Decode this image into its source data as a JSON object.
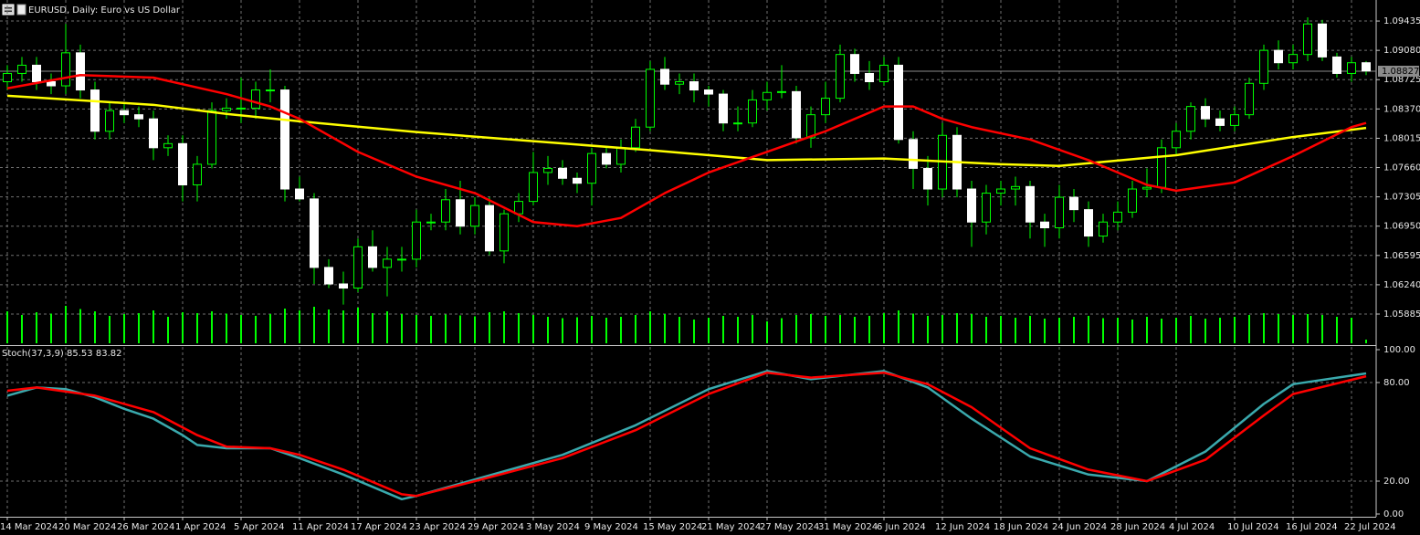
{
  "chart_data": {
    "type": "candlestick",
    "title": "EURUSD, Daily:  Euro vs US Dollar",
    "ylim": [
      1.0552,
      1.0969
    ],
    "yticks": [
      1.09435,
      {
        "value": 1.0908,
        "label": "1.09080"
      },
      1.08725,
      {
        "value": 1.0837,
        "label": "1.08370"
      },
      1.08015,
      {
        "value": 1.0766,
        "label": "1.07660"
      },
      1.07305,
      {
        "value": 1.0695,
        "label": "1.06950"
      },
      1.06595,
      {
        "value": 1.0624,
        "label": "1.06240"
      },
      1.05885
    ],
    "xticks": [
      {
        "value": 0,
        "label": "14 Mar 2024"
      },
      {
        "value": 4,
        "label": "20 Mar 2024"
      },
      {
        "value": 8,
        "label": "26 Mar 2024"
      },
      {
        "value": 12,
        "label": "1 Apr 2024"
      },
      {
        "value": 16,
        "label": "5 Apr 2024"
      },
      {
        "value": 20,
        "label": "11 Apr 2024"
      },
      {
        "value": 24,
        "label": "17 Apr 2024"
      },
      {
        "value": 28,
        "label": "23 Apr 2024"
      },
      {
        "value": 32,
        "label": "29 Apr 2024"
      },
      {
        "value": 36,
        "label": "3 May 2024"
      },
      {
        "value": 40,
        "label": "9 May 2024"
      },
      {
        "value": 44,
        "label": "15 May 2024"
      },
      {
        "value": 48,
        "label": "21 May 2024"
      },
      {
        "value": 52,
        "label": "27 May 2024"
      },
      {
        "value": 56,
        "label": "31 May 2024"
      },
      {
        "value": 60,
        "label": "6 Jun 2024"
      },
      {
        "value": 64,
        "label": "12 Jun 2024"
      },
      {
        "value": 68,
        "label": "18 Jun 2024"
      },
      {
        "value": 72,
        "label": "24 Jun 2024"
      },
      {
        "value": 76,
        "label": "28 Jun 2024"
      },
      {
        "value": 80,
        "label": "4 Jul 2024"
      },
      {
        "value": 84,
        "label": "10 Jul 2024"
      },
      {
        "value": 88,
        "label": "16 Jul 2024"
      },
      {
        "value": 92,
        "label": "22 Jul 2024"
      }
    ],
    "grid": true,
    "bull_color": "#000000",
    "bear_color": "#ffffff",
    "wick_color": "#00ff00",
    "current_price": 1.08827,
    "candles": [
      [
        1.087,
        1.089,
        1.086,
        1.088
      ],
      [
        1.088,
        1.09,
        1.087,
        1.089
      ],
      [
        1.089,
        1.09,
        1.086,
        1.087
      ],
      [
        1.087,
        1.088,
        1.0855,
        1.0865
      ],
      [
        1.0865,
        1.094,
        1.0855,
        1.0905
      ],
      [
        1.0905,
        1.0915,
        1.085,
        1.086
      ],
      [
        1.086,
        1.087,
        1.08,
        1.081
      ],
      [
        1.081,
        1.0845,
        1.08,
        1.0835
      ],
      [
        1.0835,
        1.0845,
        1.082,
        1.083
      ],
      [
        1.083,
        1.084,
        1.0815,
        1.0825
      ],
      [
        1.0825,
        1.0835,
        1.0775,
        1.079
      ],
      [
        1.079,
        1.0805,
        1.078,
        1.0795
      ],
      [
        1.0795,
        1.0805,
        1.0725,
        1.0745
      ],
      [
        1.0745,
        1.078,
        1.0725,
        1.077
      ],
      [
        1.077,
        1.0845,
        1.0765,
        1.0835
      ],
      [
        1.0835,
        1.085,
        1.0825,
        1.0838
      ],
      [
        1.0838,
        1.0875,
        1.082,
        1.0838
      ],
      [
        1.0838,
        1.087,
        1.0825,
        1.086
      ],
      [
        1.086,
        1.0885,
        1.0845,
        1.086
      ],
      [
        1.086,
        1.0865,
        1.0725,
        1.074
      ],
      [
        1.074,
        1.0755,
        1.0725,
        1.0728
      ],
      [
        1.0728,
        1.0735,
        1.0625,
        1.0645
      ],
      [
        1.0645,
        1.0655,
        1.062,
        1.0625
      ],
      [
        1.0625,
        1.064,
        1.06,
        1.062
      ],
      [
        1.062,
        1.068,
        1.0615,
        1.067
      ],
      [
        1.067,
        1.069,
        1.064,
        1.0645
      ],
      [
        1.0645,
        1.067,
        1.061,
        1.0655
      ],
      [
        1.0655,
        1.067,
        1.064,
        1.0655
      ],
      [
        1.0655,
        1.0715,
        1.0645,
        1.07
      ],
      [
        1.07,
        1.071,
        1.069,
        1.07
      ],
      [
        1.07,
        1.074,
        1.069,
        1.0727
      ],
      [
        1.0727,
        1.075,
        1.0685,
        1.0695
      ],
      [
        1.0695,
        1.073,
        1.0685,
        1.072
      ],
      [
        1.072,
        1.073,
        1.066,
        1.0665
      ],
      [
        1.0665,
        1.0715,
        1.065,
        1.071
      ],
      [
        1.071,
        1.0735,
        1.07,
        1.0725
      ],
      [
        1.0725,
        1.0785,
        1.072,
        1.076
      ],
      [
        1.076,
        1.078,
        1.0745,
        1.0765
      ],
      [
        1.0765,
        1.0775,
        1.0745,
        1.0753
      ],
      [
        1.0753,
        1.076,
        1.0735,
        1.0747
      ],
      [
        1.0747,
        1.079,
        1.072,
        1.0783
      ],
      [
        1.0783,
        1.079,
        1.0765,
        1.077
      ],
      [
        1.077,
        1.08,
        1.076,
        1.079
      ],
      [
        1.079,
        1.0825,
        1.0785,
        1.0815
      ],
      [
        1.0815,
        1.0895,
        1.081,
        1.0885
      ],
      [
        1.0885,
        1.09,
        1.086,
        1.0867
      ],
      [
        1.0867,
        1.088,
        1.0855,
        1.087
      ],
      [
        1.087,
        1.088,
        1.0845,
        1.086
      ],
      [
        1.086,
        1.0865,
        1.084,
        1.0855
      ],
      [
        1.0855,
        1.086,
        1.081,
        1.082
      ],
      [
        1.082,
        1.084,
        1.081,
        1.082
      ],
      [
        1.082,
        1.086,
        1.0815,
        1.0848
      ],
      [
        1.0848,
        1.087,
        1.0835,
        1.0857
      ],
      [
        1.0857,
        1.089,
        1.085,
        1.0858
      ],
      [
        1.0858,
        1.0865,
        1.0795,
        1.0802
      ],
      [
        1.0802,
        1.084,
        1.079,
        1.083
      ],
      [
        1.083,
        1.087,
        1.082,
        1.085
      ],
      [
        1.085,
        1.0915,
        1.0845,
        1.0903
      ],
      [
        1.0903,
        1.091,
        1.087,
        1.088
      ],
      [
        1.088,
        1.0895,
        1.086,
        1.087
      ],
      [
        1.087,
        1.09,
        1.0865,
        1.089
      ],
      [
        1.089,
        1.09,
        1.0795,
        1.08
      ],
      [
        1.08,
        1.081,
        1.074,
        1.0765
      ],
      [
        1.0765,
        1.078,
        1.072,
        1.074
      ],
      [
        1.074,
        1.082,
        1.073,
        1.0805
      ],
      [
        1.0805,
        1.0815,
        1.073,
        1.074
      ],
      [
        1.074,
        1.075,
        1.067,
        1.07
      ],
      [
        1.07,
        1.0745,
        1.0685,
        1.0735
      ],
      [
        1.0735,
        1.075,
        1.072,
        1.074
      ],
      [
        1.074,
        1.0755,
        1.072,
        1.0743
      ],
      [
        1.0743,
        1.075,
        1.068,
        1.07
      ],
      [
        1.07,
        1.071,
        1.067,
        1.0693
      ],
      [
        1.0693,
        1.0745,
        1.068,
        1.073
      ],
      [
        1.073,
        1.074,
        1.07,
        1.0715
      ],
      [
        1.0715,
        1.0725,
        1.067,
        1.0683
      ],
      [
        1.0683,
        1.071,
        1.0675,
        1.07
      ],
      [
        1.07,
        1.0725,
        1.069,
        1.0712
      ],
      [
        1.0712,
        1.075,
        1.0705,
        1.074
      ],
      [
        1.074,
        1.0765,
        1.073,
        1.0742
      ],
      [
        1.0742,
        1.08,
        1.0735,
        1.079
      ],
      [
        1.079,
        1.082,
        1.078,
        1.081
      ],
      [
        1.081,
        1.0845,
        1.08,
        1.084
      ],
      [
        1.084,
        1.085,
        1.0815,
        1.0825
      ],
      [
        1.0825,
        1.0835,
        1.081,
        1.0817
      ],
      [
        1.0817,
        1.084,
        1.081,
        1.083
      ],
      [
        1.083,
        1.0875,
        1.0825,
        1.0868
      ],
      [
        1.0868,
        1.0915,
        1.086,
        1.0908
      ],
      [
        1.0908,
        1.092,
        1.0885,
        1.0893
      ],
      [
        1.0893,
        1.0915,
        1.0885,
        1.0903
      ],
      [
        1.0903,
        1.0948,
        1.0895,
        1.094
      ],
      [
        1.094,
        1.0945,
        1.0895,
        1.09
      ],
      [
        1.09,
        1.0905,
        1.0875,
        1.088
      ],
      [
        1.088,
        1.09,
        1.087,
        1.0893
      ],
      [
        1.0893,
        1.0895,
        1.0878,
        1.0883
      ]
    ],
    "volume_color": "#00ff00",
    "volume_ylim": [
      0,
      90000
    ],
    "volumes": [
      70000,
      62000,
      68000,
      65000,
      82000,
      75000,
      70000,
      60000,
      64000,
      66000,
      72000,
      58000,
      68000,
      66000,
      70000,
      65000,
      62000,
      60000,
      64000,
      76000,
      72000,
      80000,
      74000,
      72000,
      78000,
      66000,
      70000,
      64000,
      62000,
      60000,
      63000,
      61000,
      59000,
      68000,
      70000,
      66000,
      62000,
      58000,
      55000,
      57000,
      60000,
      56000,
      58000,
      62000,
      70000,
      64000,
      58000,
      52000,
      56000,
      60000,
      58000,
      62000,
      48000,
      55000,
      62000,
      64000,
      60000,
      62000,
      58000,
      60000,
      66000,
      72000,
      65000,
      60000,
      62000,
      66000,
      64000,
      58000,
      60000,
      56000,
      60000,
      54000,
      56000,
      58000,
      60000,
      55000,
      56000,
      52000,
      58000,
      54000,
      56000,
      60000,
      54000,
      56000,
      58000,
      62000,
      66000,
      64000,
      62000,
      64000,
      62000,
      58000,
      56000,
      8000
    ],
    "series": [
      {
        "color": "#ffff00",
        "x": [
          0,
          10,
          15,
          20,
          28,
          36,
          44,
          52,
          60,
          68,
          72,
          80,
          88,
          93
        ],
        "values": [
          1.0853,
          1.0842,
          1.0831,
          1.0822,
          1.0809,
          1.0798,
          1.0787,
          1.0775,
          1.0777,
          1.077,
          1.0768,
          1.0781,
          1.0803,
          1.0814
        ]
      },
      {
        "color": "#ff0000",
        "x": [
          0,
          5,
          10,
          15,
          18,
          20,
          24,
          28,
          32,
          36,
          39,
          42,
          45,
          48,
          52,
          56,
          60,
          62,
          64,
          66,
          70,
          74,
          78,
          80,
          84,
          88,
          92,
          93
        ],
        "values": [
          1.0862,
          1.0878,
          1.0875,
          1.0855,
          1.084,
          1.0825,
          1.0785,
          1.0755,
          1.0735,
          1.07,
          1.0695,
          1.0705,
          1.0735,
          1.076,
          1.0785,
          1.081,
          1.084,
          1.084,
          1.0825,
          1.0815,
          1.08,
          1.0775,
          1.0745,
          1.0738,
          1.0748,
          1.078,
          1.0815,
          1.082
        ]
      }
    ],
    "stochastic": {
      "title": "Stoch(37,3,9)",
      "ylim": [
        0,
        100
      ],
      "yticks": [
        {
          "value": 100,
          "label": "100.00"
        },
        {
          "value": 80,
          "label": "80.00"
        },
        {
          "value": 20,
          "label": "20.00"
        },
        {
          "value": 0,
          "label": "0.00"
        }
      ],
      "series": [
        {
          "color": "#3aa9ad",
          "x": [
            0,
            2,
            4,
            6,
            8,
            10,
            12,
            13,
            15,
            18,
            20,
            23,
            27,
            28,
            32,
            38,
            43,
            48,
            52,
            55,
            60,
            63,
            66,
            70,
            74,
            78,
            82,
            86,
            88,
            93
          ],
          "values": [
            72,
            77,
            76,
            71,
            64,
            58,
            48,
            42,
            40,
            40,
            34,
            24,
            9,
            11,
            21,
            36,
            54,
            76,
            87,
            82,
            87,
            77,
            58,
            35,
            24,
            20,
            38,
            67,
            79,
            85.53
          ]
        },
        {
          "color": "#ff0000",
          "x": [
            0,
            2,
            6,
            10,
            13,
            15,
            18,
            20,
            23,
            27,
            28,
            32,
            38,
            43,
            48,
            52,
            55,
            60,
            63,
            66,
            70,
            74,
            78,
            82,
            86,
            88,
            93
          ],
          "values": [
            75,
            77,
            72,
            62,
            48,
            41,
            40,
            36,
            27,
            12,
            11,
            20,
            34,
            51,
            73,
            86,
            83,
            86,
            79,
            65,
            40,
            27,
            20,
            33,
            60,
            73,
            83.82
          ]
        }
      ]
    }
  }
}
